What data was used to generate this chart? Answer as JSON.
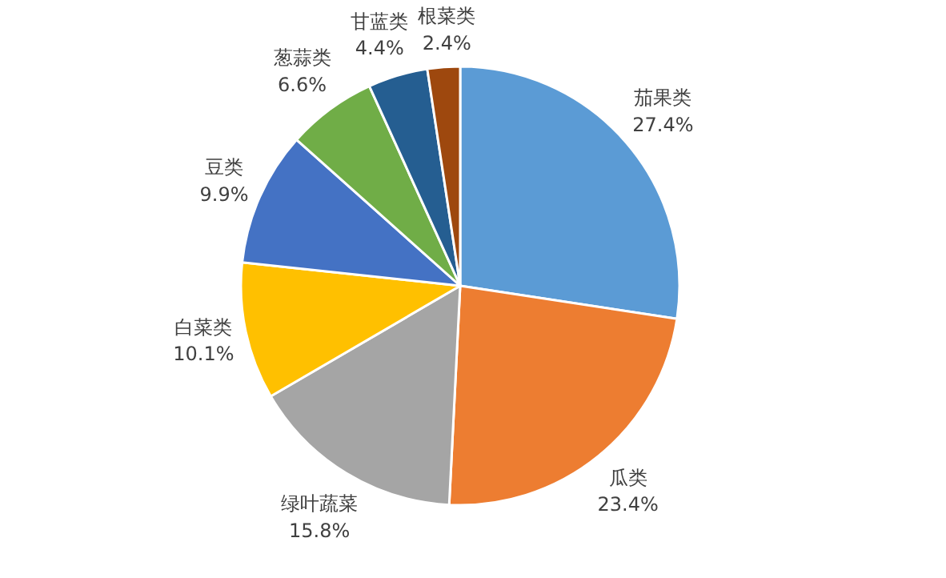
{
  "chart_data": {
    "type": "pie",
    "categories": [
      "茄果类",
      "瓜类",
      "绿叶蔬菜",
      "白菜类",
      "豆类",
      "葱蒜类",
      "甘蓝类",
      "根菜类"
    ],
    "values": [
      27.4,
      23.4,
      15.8,
      10.1,
      9.9,
      6.6,
      4.4,
      2.4
    ],
    "value_labels": [
      "27.4%",
      "23.4%",
      "15.8%",
      "10.1%",
      "9.9%",
      "6.6%",
      "4.4%",
      "2.4%"
    ],
    "colors": [
      "#5b9bd5",
      "#ed7d31",
      "#a5a5a5",
      "#ffc000",
      "#4472c4",
      "#70ad47",
      "#255e91",
      "#9e480e"
    ]
  }
}
